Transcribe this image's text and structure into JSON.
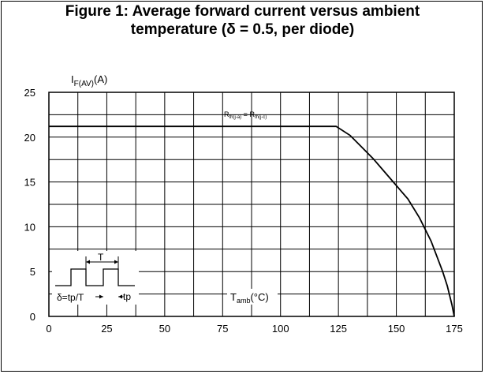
{
  "title_line1": "Figure 1: Average forward current versus ambient",
  "title_line2": "temperature (δ = 0.5, per diode)",
  "chart_data": {
    "type": "line",
    "ylabel": {
      "main": "I",
      "sub": "F(AV)",
      "unit": "(A)"
    },
    "xlabel": {
      "main": "T",
      "sub": "amb",
      "unit": "(°C)"
    },
    "xlim": [
      0,
      175
    ],
    "ylim": [
      0,
      25
    ],
    "x_ticks": [
      0,
      25,
      50,
      75,
      100,
      125,
      150,
      175
    ],
    "y_ticks": [
      0,
      5,
      10,
      15,
      20,
      25
    ],
    "grid": true,
    "series": [
      {
        "x": [
          0,
          124,
          130,
          135,
          140,
          145,
          150,
          155,
          160,
          165,
          170,
          172,
          174,
          175
        ],
        "y": [
          21.2,
          21.2,
          20.2,
          18.9,
          17.6,
          16.1,
          14.6,
          13.1,
          11.0,
          8.4,
          5.0,
          3.4,
          1.3,
          0
        ]
      }
    ],
    "annotations": {
      "rth": {
        "a": "R",
        "a_sub": "th(j-a)",
        "eq": " = ",
        "b": "R",
        "b_sub": "th(j-c)"
      },
      "pulse_period": "T",
      "pulse_width": "tp",
      "delta_formula": "δ=tp/T"
    }
  }
}
